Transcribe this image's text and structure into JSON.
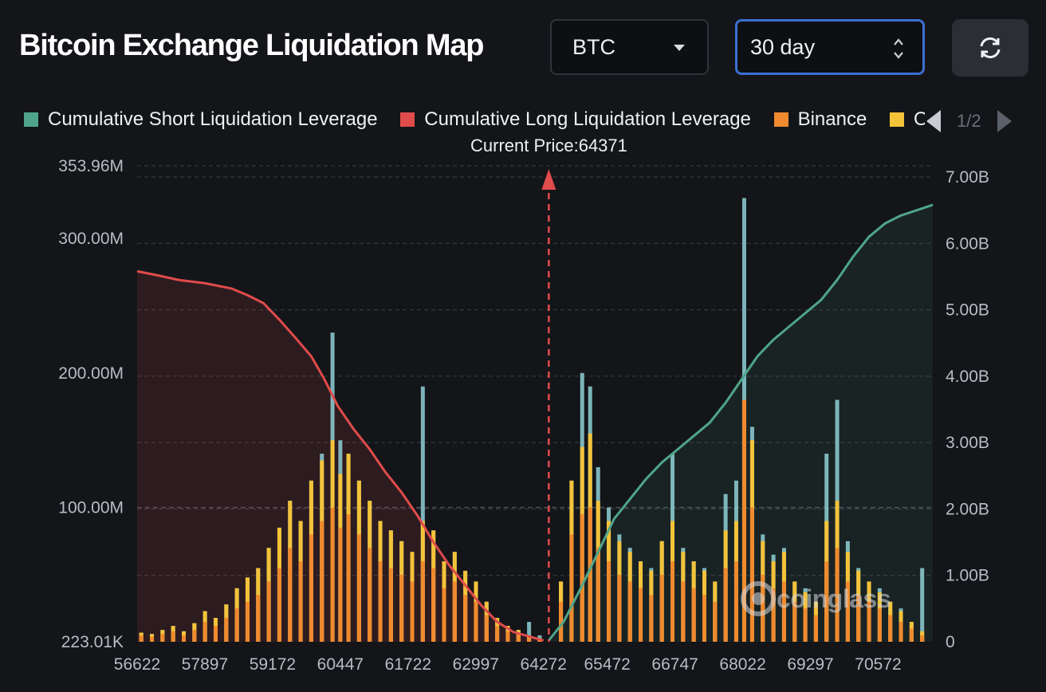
{
  "title": "Bitcoin Exchange Liquidation Map",
  "controls": {
    "asset_value": "BTC",
    "range_value": "30 day",
    "refresh_icon": "refresh-icon"
  },
  "legend": {
    "items": [
      {
        "label": "Cumulative Short Liquidation Leverage",
        "color": "#4fa58a"
      },
      {
        "label": "Cumulative Long Liquidation Leverage",
        "color": "#e04b4b"
      },
      {
        "label": "Binance",
        "color": "#f08a2e"
      },
      {
        "label": "OKX",
        "color": "#f4c33a"
      }
    ],
    "page": "1/2"
  },
  "watermark": "coinglass",
  "chart_data": {
    "type": "bar",
    "current_price_label": "Current Price:64371",
    "current_price": 64371,
    "x_ticks": [
      "56622",
      "57897",
      "59172",
      "60447",
      "61722",
      "62997",
      "64272",
      "65472",
      "66747",
      "68022",
      "69297",
      "70572"
    ],
    "x_tick_values": [
      56622,
      57897,
      59172,
      60447,
      61722,
      62997,
      64272,
      65472,
      66747,
      68022,
      69297,
      70572
    ],
    "xlim": [
      56622,
      71600
    ],
    "left_axis": {
      "ticks": [
        "353.96M",
        "300.00M",
        "200.00M",
        "100.00M",
        "223.01K"
      ],
      "tick_values": [
        353.96,
        300,
        200,
        100,
        0.223
      ],
      "range": [
        0.223,
        353.96
      ],
      "unit": "M"
    },
    "right_axis": {
      "ticks": [
        "7.00B",
        "6.00B",
        "5.00B",
        "4.00B",
        "3.00B",
        "2.00B",
        "1.00B",
        "0"
      ],
      "tick_values": [
        7,
        6,
        5,
        4,
        3,
        2,
        1,
        0
      ],
      "range": [
        0,
        7
      ],
      "unit": "B"
    },
    "long_leverage_B": {
      "x": [
        56622,
        57000,
        57400,
        57900,
        58400,
        58700,
        59000,
        59300,
        59600,
        59900,
        60150,
        60400,
        60700,
        61000,
        61300,
        61600,
        61900,
        62200,
        62500,
        62800,
        63100,
        63400,
        63700,
        64000,
        64272
      ],
      "values": [
        5.58,
        5.52,
        5.45,
        5.4,
        5.32,
        5.22,
        5.1,
        4.85,
        4.58,
        4.3,
        3.95,
        3.55,
        3.2,
        2.9,
        2.55,
        2.25,
        1.9,
        1.5,
        1.15,
        0.85,
        0.55,
        0.3,
        0.15,
        0.08,
        0.02
      ]
    },
    "short_leverage_B": {
      "x": [
        64371,
        64650,
        65000,
        65300,
        65600,
        65900,
        66200,
        66500,
        66800,
        67100,
        67400,
        67700,
        68000,
        68300,
        68600,
        68900,
        69200,
        69500,
        69800,
        70100,
        70400,
        70700,
        71000,
        71300,
        71600
      ],
      "values": [
        0.02,
        0.3,
        0.85,
        1.35,
        1.85,
        2.15,
        2.45,
        2.7,
        2.9,
        3.1,
        3.3,
        3.6,
        3.95,
        4.3,
        4.55,
        4.75,
        4.95,
        5.15,
        5.45,
        5.8,
        6.1,
        6.3,
        6.42,
        6.5,
        6.58
      ]
    },
    "bars_M": {
      "x": [
        56700,
        56900,
        57100,
        57300,
        57500,
        57700,
        57900,
        58100,
        58300,
        58500,
        58700,
        58900,
        59100,
        59300,
        59500,
        59700,
        59900,
        60100,
        60300,
        60447,
        60600,
        60800,
        61000,
        61200,
        61400,
        61600,
        61800,
        62000,
        62200,
        62400,
        62600,
        62800,
        63000,
        63200,
        63400,
        63600,
        63800,
        64000,
        64200,
        64600,
        64800,
        65000,
        65150,
        65300,
        65500,
        65700,
        65900,
        66100,
        66300,
        66500,
        66700,
        66900,
        67100,
        67300,
        67500,
        67700,
        67900,
        68050,
        68200,
        68400,
        68600,
        68800,
        69000,
        69200,
        69400,
        69600,
        69800,
        70000,
        70200,
        70400,
        70600,
        70800,
        71000,
        71200,
        71400
      ],
      "binance": [
        5,
        4,
        6,
        8,
        5,
        9,
        15,
        12,
        18,
        25,
        30,
        35,
        45,
        55,
        70,
        60,
        80,
        90,
        100,
        85,
        95,
        80,
        70,
        60,
        55,
        50,
        45,
        60,
        55,
        40,
        45,
        35,
        30,
        20,
        12,
        8,
        6,
        3,
        2,
        30,
        80,
        95,
        100,
        70,
        60,
        50,
        45,
        40,
        35,
        50,
        60,
        45,
        40,
        35,
        30,
        55,
        60,
        180,
        100,
        50,
        40,
        45,
        30,
        25,
        20,
        60,
        70,
        45,
        35,
        30,
        25,
        20,
        15,
        10,
        5
      ],
      "okx": [
        2,
        2,
        3,
        4,
        3,
        5,
        8,
        6,
        10,
        15,
        18,
        20,
        25,
        30,
        35,
        30,
        40,
        45,
        50,
        40,
        45,
        40,
        35,
        30,
        28,
        25,
        22,
        30,
        28,
        20,
        22,
        18,
        15,
        10,
        6,
        4,
        3,
        2,
        1,
        15,
        40,
        50,
        55,
        35,
        30,
        25,
        22,
        20,
        18,
        25,
        30,
        22,
        20,
        18,
        15,
        28,
        30,
        0,
        50,
        25,
        20,
        22,
        15,
        12,
        10,
        30,
        35,
        22,
        18,
        15,
        12,
        10,
        8,
        5,
        3
      ],
      "others": [
        6,
        5,
        7,
        10,
        6,
        11,
        18,
        14,
        22,
        30,
        38,
        45,
        60,
        75,
        90,
        80,
        110,
        140,
        230,
        150,
        130,
        110,
        95,
        85,
        75,
        70,
        65,
        190,
        80,
        60,
        65,
        50,
        45,
        30,
        18,
        12,
        8,
        15,
        5,
        40,
        120,
        200,
        190,
        130,
        100,
        80,
        70,
        60,
        55,
        75,
        140,
        70,
        60,
        55,
        45,
        110,
        120,
        330,
        160,
        80,
        65,
        70,
        45,
        40,
        30,
        140,
        180,
        75,
        55,
        45,
        40,
        30,
        25,
        15,
        55
      ]
    }
  }
}
